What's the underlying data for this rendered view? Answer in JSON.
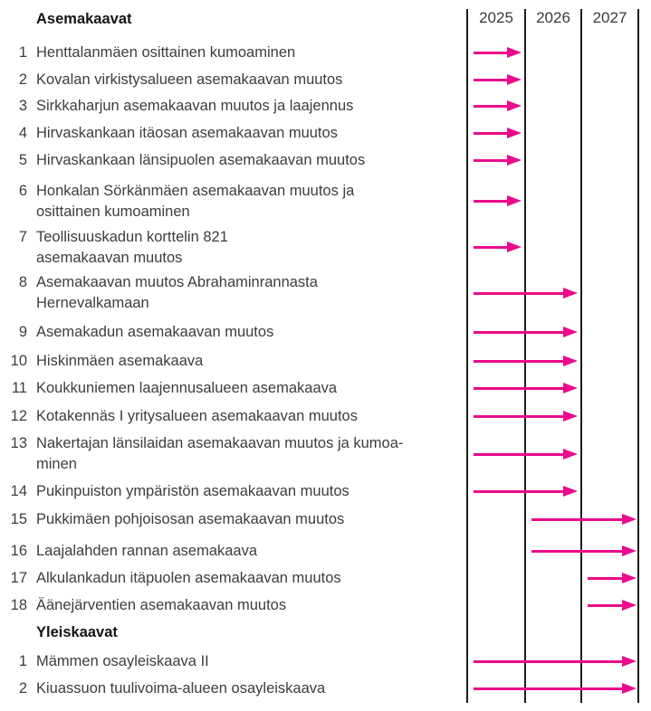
{
  "chart_data": {
    "type": "bar",
    "subtype": "gantt-timeline-arrows",
    "title": "",
    "x_axis": {
      "tick_labels": [
        "2025",
        "2026",
        "2027"
      ],
      "range_years": [
        2025,
        2027
      ],
      "grid": "yearly vertical lines"
    },
    "legend": "none",
    "arrow_color": "#ea0b8c",
    "grid_line_color": "#1c1c1c",
    "sections": [
      {
        "title": "Asemakaavat",
        "rows": [
          {
            "num": "1",
            "label": "Henttalanmäen osittainen kumoaminen",
            "from": 2025,
            "to": 2025
          },
          {
            "num": "2",
            "label": "Kovalan virkistysalueen asemakaavan muutos",
            "from": 2025,
            "to": 2025
          },
          {
            "num": "3",
            "label": "Sirkkaharjun asemakaavan muutos ja laajennus",
            "from": 2025,
            "to": 2025
          },
          {
            "num": "4",
            "label": "Hirvaskankaan itäosan asemakaavan muutos",
            "from": 2025,
            "to": 2025
          },
          {
            "num": "5",
            "label": "Hirvaskankaan länsipuolen asemakaavan muutos",
            "from": 2025,
            "to": 2025
          },
          {
            "num": "6",
            "label": "Honkalan Sörkänmäen asemakaavan muutos ja\nosittainen kumoaminen",
            "from": 2025,
            "to": 2025
          },
          {
            "num": "7",
            "label": "Teollisuuskadun korttelin 821\nasemakaavan muutos",
            "from": 2025,
            "to": 2025
          },
          {
            "num": "8",
            "label": "Asemakaavan muutos Abrahaminrannasta\nHernevalkamaan",
            "from": 2025,
            "to": 2026
          },
          {
            "num": "9",
            "label": "Asemakadun asemakaavan muutos",
            "from": 2025,
            "to": 2026
          },
          {
            "num": "10",
            "label": "Hiskinmäen asemakaava",
            "from": 2025,
            "to": 2026
          },
          {
            "num": "11",
            "label": "Koukkuniemen laajennusalueen asemakaava",
            "from": 2025,
            "to": 2026
          },
          {
            "num": "12",
            "label": "Kotakennäs I yritysalueen asemakaavan muutos",
            "from": 2025,
            "to": 2026
          },
          {
            "num": "13",
            "label": "Nakertajan länsilaidan asemakaavan muutos ja kumoa-\nminen",
            "from": 2025,
            "to": 2026
          },
          {
            "num": "14",
            "label": "Pukinpuiston ympäristön asemakaavan muutos",
            "from": 2025,
            "to": 2026
          },
          {
            "num": "15",
            "label": "Pukkimäen pohjoisosan asemakaavan muutos",
            "from": 2026,
            "to": 2027
          },
          {
            "num": "16",
            "label": "Laajalahden rannan asemakaava",
            "from": 2026,
            "to": 2027
          },
          {
            "num": "17",
            "label": "Alkulankadun itäpuolen asemakaavan muutos",
            "from": 2027,
            "to": 2027
          },
          {
            "num": "18",
            "label": "Äänejärventien asemakaavan muutos",
            "from": 2027,
            "to": 2027
          }
        ]
      },
      {
        "title": "Yleiskaavat",
        "rows": [
          {
            "num": "1",
            "label": "Mämmen osayleiskaava II",
            "from": 2025,
            "to": 2027
          },
          {
            "num": "2",
            "label": "Kiuassuon tuulivoima-alueen osayleiskaava",
            "from": 2025,
            "to": 2027
          }
        ]
      }
    ]
  }
}
